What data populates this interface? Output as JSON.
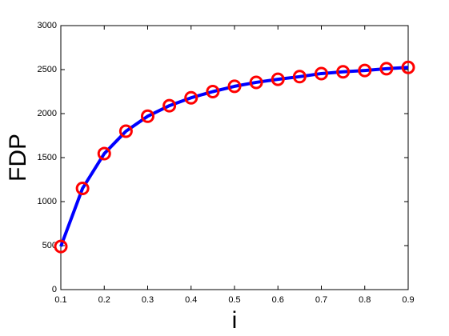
{
  "chart_data": {
    "type": "line",
    "xlabel": "i",
    "ylabel": "FDP",
    "x": [
      0.1,
      0.15,
      0.2,
      0.25,
      0.3,
      0.35,
      0.4,
      0.45,
      0.5,
      0.55,
      0.6,
      0.65,
      0.7,
      0.75,
      0.8,
      0.85,
      0.9
    ],
    "series": [
      {
        "color": "#0000ff",
        "marker_color": "#ff0000",
        "values": [
          490,
          1150,
          1545,
          1800,
          1970,
          2090,
          2180,
          2250,
          2310,
          2355,
          2390,
          2420,
          2455,
          2475,
          2490,
          2510,
          2525
        ]
      }
    ],
    "xlim": [
      0.1,
      0.9
    ],
    "xticks": [
      0.1,
      0.2,
      0.3,
      0.4,
      0.5,
      0.6,
      0.7,
      0.8,
      0.9
    ],
    "ylim": [
      0,
      3000
    ],
    "yticks": [
      0,
      500,
      1000,
      1500,
      2000,
      2500,
      3000
    ],
    "grid": false
  }
}
